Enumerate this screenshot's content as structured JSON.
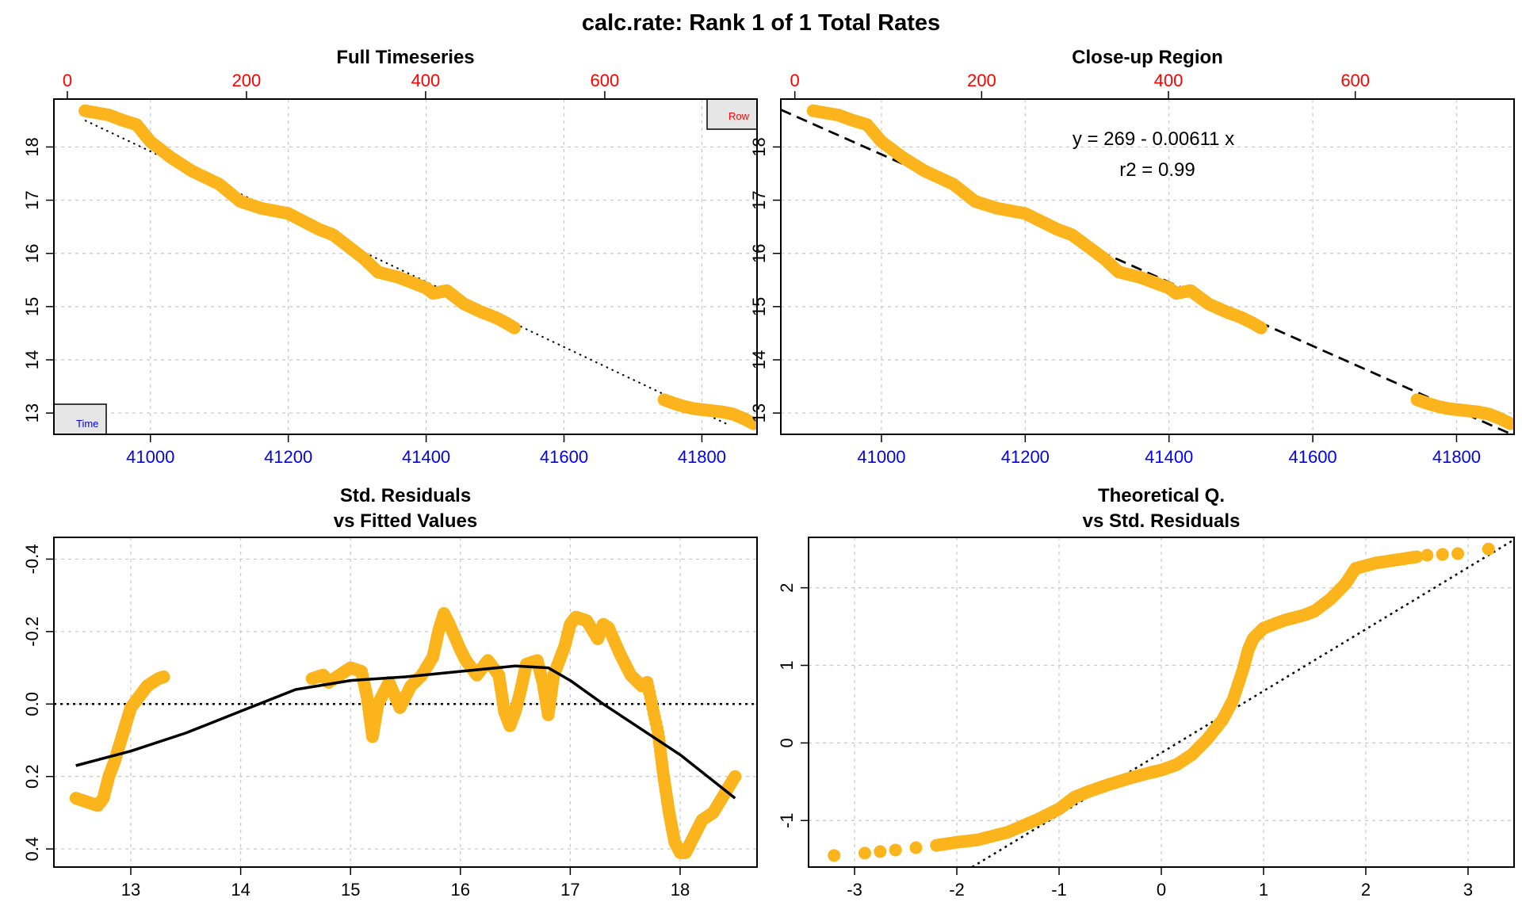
{
  "page": {
    "title": "calc.rate: Rank 1 of 1 Total Rates"
  },
  "colors": {
    "points": "#FBB41C",
    "top_axis": "#FF0000",
    "bottom_axis_time": "#0000FF",
    "grid": "#C8C8C8",
    "line": "#000000"
  },
  "chart_data": [
    {
      "id": "full",
      "type": "scatter",
      "title": "Full Timeseries",
      "xlabel": "",
      "ylabel": "",
      "x_axis_bottom_ticks": [
        "41000",
        "41200",
        "41400",
        "41600",
        "41800"
      ],
      "x_axis_top_ticks": [
        "0",
        "200",
        "400",
        "600"
      ],
      "y_ticks": [
        "13",
        "14",
        "15",
        "16",
        "17",
        "18"
      ],
      "xlim": [
        40860,
        41880
      ],
      "ylim": [
        12.6,
        18.9
      ],
      "x_top_lim": [
        -15,
        770
      ],
      "grid": true,
      "legend_row": "Row",
      "legend_time": "Time",
      "segments": [
        {
          "x": [
            40905,
            40940,
            40960,
            40980,
            41000,
            41030,
            41060,
            41100,
            41130,
            41160,
            41200,
            41230,
            41245,
            41265,
            41290,
            41310,
            41330,
            41360,
            41380,
            41400,
            41410,
            41430,
            41440,
            41455,
            41480,
            41500,
            41515,
            41528
          ],
          "y": [
            18.68,
            18.6,
            18.5,
            18.42,
            18.1,
            17.8,
            17.55,
            17.3,
            16.98,
            16.85,
            16.75,
            16.55,
            16.45,
            16.35,
            16.1,
            15.9,
            15.65,
            15.55,
            15.45,
            15.35,
            15.25,
            15.3,
            15.2,
            15.05,
            14.9,
            14.8,
            14.7,
            14.6
          ]
        },
        {
          "x": [
            41745,
            41760,
            41775,
            41790,
            41810,
            41830,
            41845,
            41860,
            41875
          ],
          "y": [
            13.25,
            13.18,
            13.12,
            13.08,
            13.05,
            13.02,
            12.98,
            12.9,
            12.8
          ]
        }
      ],
      "fit": {
        "type": "dotted",
        "x": [
          40905,
          41840
        ],
        "y": [
          18.5,
          12.77
        ]
      }
    },
    {
      "id": "closeup",
      "type": "scatter",
      "title": "Close-up Region",
      "xlabel": "",
      "ylabel": "",
      "x_axis_bottom_ticks": [
        "41000",
        "41200",
        "41400",
        "41600",
        "41800"
      ],
      "x_axis_top_ticks": [
        "0",
        "200",
        "400",
        "600"
      ],
      "y_ticks": [
        "13",
        "14",
        "15",
        "16",
        "17",
        "18"
      ],
      "xlim": [
        40860,
        41880
      ],
      "ylim": [
        12.6,
        18.9
      ],
      "x_top_lim": [
        -15,
        770
      ],
      "grid": true,
      "equation": "y = 269 - 0.00611 x",
      "r2": "r2 = 0.99",
      "segments": [
        {
          "x": [
            40905,
            40940,
            40960,
            40980,
            41000,
            41030,
            41060,
            41100,
            41130,
            41160,
            41200,
            41230,
            41245,
            41265,
            41290,
            41310,
            41330,
            41360,
            41380,
            41400,
            41410,
            41430,
            41440,
            41455,
            41480,
            41500,
            41515,
            41528
          ],
          "y": [
            18.68,
            18.6,
            18.5,
            18.42,
            18.1,
            17.8,
            17.55,
            17.3,
            16.98,
            16.85,
            16.75,
            16.55,
            16.45,
            16.35,
            16.1,
            15.9,
            15.65,
            15.55,
            15.45,
            15.35,
            15.25,
            15.3,
            15.2,
            15.05,
            14.9,
            14.8,
            14.7,
            14.6
          ]
        },
        {
          "x": [
            41745,
            41760,
            41775,
            41790,
            41810,
            41830,
            41845,
            41860,
            41875
          ],
          "y": [
            13.25,
            13.18,
            13.12,
            13.08,
            13.05,
            13.02,
            12.98,
            12.9,
            12.8
          ]
        }
      ],
      "fit": {
        "type": "dashed",
        "x": [
          40860,
          41880
        ],
        "y": [
          18.7,
          12.58
        ]
      }
    },
    {
      "id": "resid",
      "type": "scatter",
      "title": [
        "Std. Residuals",
        "vs Fitted Values"
      ],
      "xlabel": "",
      "ylabel": "",
      "x_ticks": [
        "13",
        "14",
        "15",
        "16",
        "17",
        "18"
      ],
      "y_ticks": [
        "-0.4",
        "-0.2",
        "0.0",
        "0.2",
        "0.4"
      ],
      "y_tick_values": [
        -0.4,
        -0.2,
        0.0,
        0.2,
        0.4
      ],
      "xlim": [
        12.3,
        18.7
      ],
      "ylim": [
        -0.46,
        0.45
      ],
      "y_reversed": true,
      "grid": true,
      "segments": [
        {
          "x": [
            12.5,
            12.6,
            12.7,
            12.75,
            12.8,
            12.85,
            12.9,
            12.95,
            13.0,
            13.05,
            13.1,
            13.15,
            13.2,
            13.25,
            13.3
          ],
          "y": [
            0.26,
            0.27,
            0.28,
            0.26,
            0.2,
            0.16,
            0.11,
            0.06,
            0.01,
            -0.01,
            -0.03,
            -0.05,
            -0.06,
            -0.07,
            -0.075
          ]
        },
        {
          "x": [
            14.65,
            14.75,
            14.8,
            14.9,
            15.0,
            15.1,
            15.15,
            15.2,
            15.25,
            15.35,
            15.45,
            15.55,
            15.65,
            15.75,
            15.8,
            15.85,
            15.9,
            16.0,
            16.05,
            16.15,
            16.25,
            16.35,
            16.4,
            16.45,
            16.5,
            16.55,
            16.6,
            16.7,
            16.75,
            16.8,
            16.85,
            16.9,
            16.95,
            17.0,
            17.05,
            17.15,
            17.25,
            17.3,
            17.35,
            17.45,
            17.55,
            17.65,
            17.7,
            17.8,
            17.85,
            17.9,
            17.95,
            18.0,
            18.05,
            18.1,
            18.15,
            18.2,
            18.3,
            18.4,
            18.5
          ],
          "y": [
            -0.07,
            -0.08,
            -0.06,
            -0.08,
            -0.1,
            -0.09,
            -0.02,
            0.09,
            0.0,
            -0.06,
            0.01,
            -0.05,
            -0.08,
            -0.13,
            -0.2,
            -0.25,
            -0.22,
            -0.15,
            -0.12,
            -0.08,
            -0.12,
            -0.08,
            0.02,
            0.06,
            0.02,
            -0.04,
            -0.11,
            -0.12,
            -0.06,
            0.03,
            -0.08,
            -0.12,
            -0.16,
            -0.22,
            -0.24,
            -0.23,
            -0.18,
            -0.22,
            -0.21,
            -0.14,
            -0.08,
            -0.05,
            -0.06,
            0.08,
            0.2,
            0.3,
            0.38,
            0.41,
            0.41,
            0.38,
            0.35,
            0.32,
            0.3,
            0.25,
            0.2
          ]
        }
      ],
      "smooth": {
        "x": [
          12.5,
          13.0,
          13.5,
          14.0,
          14.5,
          15.0,
          15.5,
          16.0,
          16.5,
          16.8,
          17.0,
          17.3,
          17.6,
          18.0,
          18.5
        ],
        "y": [
          0.17,
          0.13,
          0.08,
          0.02,
          -0.04,
          -0.065,
          -0.075,
          -0.09,
          -0.105,
          -0.1,
          -0.065,
          0.0,
          0.06,
          0.14,
          0.26
        ]
      },
      "ref_line": 0.0
    },
    {
      "id": "qq",
      "type": "scatter",
      "title": [
        "Theoretical Q.",
        "vs Std. Residuals"
      ],
      "xlabel": "",
      "ylabel": "",
      "x_ticks": [
        "-3",
        "-2",
        "-1",
        "0",
        "1",
        "2",
        "3"
      ],
      "x_tick_values": [
        -3,
        -2,
        -1,
        0,
        1,
        2,
        3
      ],
      "y_ticks": [
        "-1",
        "0",
        "1",
        "2"
      ],
      "y_tick_values": [
        -1,
        0,
        1,
        2
      ],
      "xlim": [
        -3.45,
        3.45
      ],
      "ylim": [
        -1.6,
        2.65
      ],
      "grid": true,
      "points": {
        "x": [
          -3.2,
          -2.9,
          -2.75,
          -2.6,
          -2.4,
          -2.2,
          -2.0,
          -1.8,
          -1.5,
          -1.2,
          -1.0,
          -0.85,
          -0.7,
          -0.5,
          -0.3,
          -0.1,
          0.0,
          0.15,
          0.3,
          0.45,
          0.6,
          0.7,
          0.8,
          0.85,
          0.9,
          1.0,
          1.2,
          1.4,
          1.5,
          1.65,
          1.8,
          1.9,
          2.1,
          2.3,
          2.5,
          2.6,
          2.75,
          2.9,
          3.2
        ],
        "y": [
          -1.45,
          -1.42,
          -1.4,
          -1.38,
          -1.35,
          -1.32,
          -1.28,
          -1.25,
          -1.15,
          -0.98,
          -0.85,
          -0.7,
          -0.62,
          -0.53,
          -0.45,
          -0.38,
          -0.35,
          -0.28,
          -0.15,
          0.05,
          0.3,
          0.55,
          0.95,
          1.2,
          1.35,
          1.48,
          1.58,
          1.65,
          1.7,
          1.85,
          2.05,
          2.25,
          2.32,
          2.36,
          2.4,
          2.42,
          2.43,
          2.44,
          2.5
        ]
      },
      "ref": {
        "x": [
          -1.85,
          3.45
        ],
        "y": [
          -1.6,
          2.62
        ]
      }
    }
  ]
}
